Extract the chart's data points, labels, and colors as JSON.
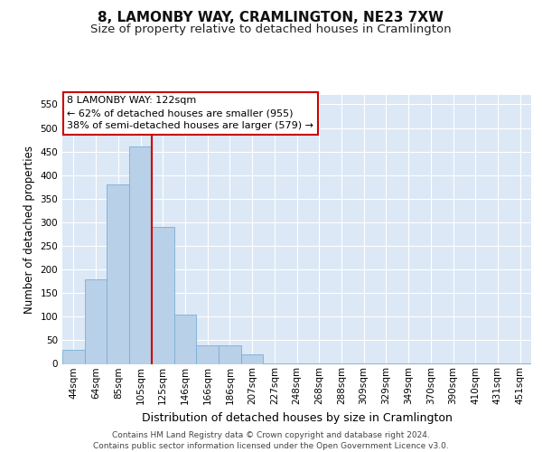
{
  "title": "8, LAMONBY WAY, CRAMLINGTON, NE23 7XW",
  "subtitle": "Size of property relative to detached houses in Cramlington",
  "xlabel": "Distribution of detached houses by size in Cramlington",
  "ylabel": "Number of detached properties",
  "categories": [
    "44sqm",
    "64sqm",
    "85sqm",
    "105sqm",
    "125sqm",
    "146sqm",
    "166sqm",
    "186sqm",
    "207sqm",
    "227sqm",
    "248sqm",
    "268sqm",
    "288sqm",
    "309sqm",
    "329sqm",
    "349sqm",
    "370sqm",
    "390sqm",
    "410sqm",
    "431sqm",
    "451sqm"
  ],
  "values": [
    30,
    180,
    380,
    460,
    290,
    105,
    40,
    40,
    20,
    1,
    1,
    1,
    1,
    1,
    1,
    1,
    1,
    1,
    1,
    1,
    1
  ],
  "bar_color": "#b8d0e8",
  "bar_edge_color": "#7aafd4",
  "marker_index": 4,
  "marker_line_color": "#cc0000",
  "annotation_text": "8 LAMONBY WAY: 122sqm\n← 62% of detached houses are smaller (955)\n38% of semi-detached houses are larger (579) →",
  "annotation_box_facecolor": "#ffffff",
  "annotation_box_edgecolor": "#cc0000",
  "ylim": [
    0,
    570
  ],
  "yticks": [
    0,
    50,
    100,
    150,
    200,
    250,
    300,
    350,
    400,
    450,
    500,
    550
  ],
  "plot_bg_color": "#dce8f5",
  "fig_bg_color": "#ffffff",
  "footer_text": "Contains HM Land Registry data © Crown copyright and database right 2024.\nContains public sector information licensed under the Open Government Licence v3.0.",
  "title_fontsize": 11,
  "subtitle_fontsize": 9.5,
  "xlabel_fontsize": 9,
  "ylabel_fontsize": 8.5,
  "tick_fontsize": 7.5,
  "annotation_fontsize": 8,
  "footer_fontsize": 6.5
}
